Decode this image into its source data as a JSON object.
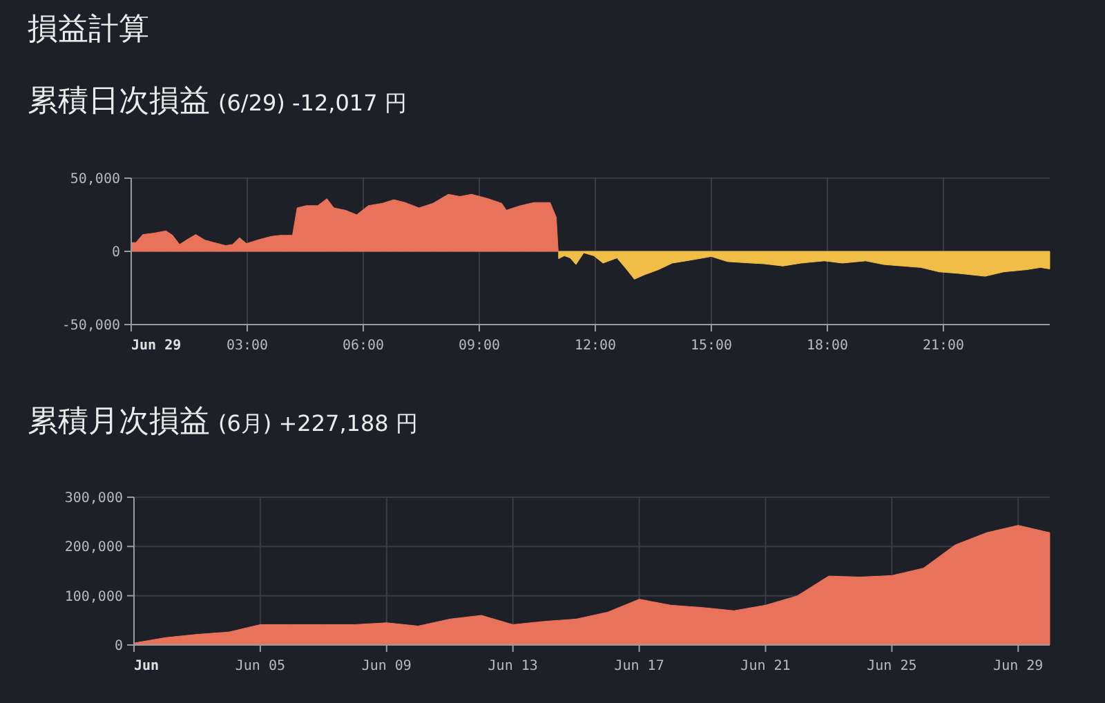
{
  "chart_data": [
    {
      "type": "area",
      "title": "累積日次損益",
      "subtitle": "(6/29) -12,017 円",
      "annotations": [
        "損益計算"
      ],
      "grid": true,
      "xlim": [
        0,
        23.75
      ],
      "xticks": [
        {
          "value": 0,
          "label": "Jun 29"
        },
        {
          "value": 3,
          "label": "03:00"
        },
        {
          "value": 6,
          "label": "06:00"
        },
        {
          "value": 9,
          "label": "09:00"
        },
        {
          "value": 12,
          "label": "12:00"
        },
        {
          "value": 15,
          "label": "15:00"
        },
        {
          "value": 18,
          "label": "18:00"
        },
        {
          "value": 21,
          "label": "21:00"
        }
      ],
      "ylim": [
        -50000,
        50000
      ],
      "yticks": [
        {
          "value": -50000,
          "label": "-50,000"
        },
        0,
        {
          "value": 50000,
          "label": "50,000"
        }
      ],
      "series": [
        {
          "color": "#e8735a",
          "x": [
            0,
            0.12,
            0.3,
            0.6,
            0.9,
            1.07,
            1.25,
            1.43,
            1.67,
            1.9,
            2.14,
            2.44,
            2.62,
            2.8,
            2.98,
            3.27,
            3.63,
            3.87,
            4.17,
            4.29,
            4.52,
            4.82,
            5.06,
            5.24,
            5.54,
            5.83,
            6.13,
            6.49,
            6.79,
            7.08,
            7.44,
            7.8,
            8.2,
            8.5,
            8.8,
            9.23,
            9.58,
            9.7,
            10.06,
            10.42,
            10.83,
            10.99,
            11.04
          ],
          "values": [
            6000,
            6000,
            11500,
            12500,
            14000,
            11000,
            4700,
            7800,
            11500,
            7800,
            6000,
            4000,
            4700,
            9400,
            5300,
            7800,
            10300,
            11000,
            11000,
            29700,
            31200,
            31200,
            36000,
            29700,
            28100,
            25000,
            31200,
            32800,
            35300,
            33400,
            29700,
            32800,
            39000,
            37500,
            39000,
            36000,
            32800,
            28100,
            31200,
            33400,
            33400,
            23400,
            0
          ]
        },
        {
          "color": "#f0bd47",
          "x": [
            11.05,
            11.2,
            11.35,
            11.5,
            11.7,
            11.96,
            12.2,
            12.56,
            12.8,
            13.01,
            13.27,
            13.63,
            13.99,
            14.46,
            15.0,
            15.42,
            15.9,
            16.37,
            16.85,
            17.32,
            17.92,
            18.39,
            18.99,
            19.46,
            19.94,
            20.42,
            20.89,
            21.37,
            22.08,
            22.56,
            23.15,
            23.51,
            23.75
          ],
          "values": [
            -5000,
            -3000,
            -4500,
            -9000,
            -1000,
            -3000,
            -8000,
            -4500,
            -12000,
            -19000,
            -16000,
            -12500,
            -8000,
            -6000,
            -3500,
            -7000,
            -7800,
            -8500,
            -10000,
            -8000,
            -6500,
            -8000,
            -6500,
            -9000,
            -10000,
            -11000,
            -14000,
            -15000,
            -17000,
            -14000,
            -12500,
            -11000,
            -12000
          ]
        }
      ]
    },
    {
      "type": "area",
      "title": "累積月次損益",
      "subtitle": "(6月) +227,188 円",
      "grid": true,
      "xlim": [
        "--06-01",
        "--06-30"
      ],
      "xticks": [
        {
          "value": "--06-01",
          "label": "Jun"
        },
        {
          "value": "--06-05",
          "label": "Jun 05"
        },
        {
          "value": "--06-09",
          "label": "Jun 09"
        },
        {
          "value": "--06-13",
          "label": "Jun 13"
        },
        {
          "value": "--06-17",
          "label": "Jun 17"
        },
        {
          "value": "--06-21",
          "label": "Jun 21"
        },
        {
          "value": "--06-25",
          "label": "Jun 25"
        },
        {
          "value": "--06-29",
          "label": "Jun 29"
        }
      ],
      "ylim": [
        0,
        300000
      ],
      "yticks": [
        0,
        {
          "value": 100000,
          "label": "100,000"
        },
        {
          "value": 200000,
          "label": "200,000"
        },
        {
          "value": 300000,
          "label": "300,000"
        }
      ],
      "x": [
        "--06-01",
        "--06-02",
        "--06-03",
        "--06-04",
        "--06-05",
        "--06-06",
        "--06-07",
        "--06-08",
        "--06-09",
        "--06-10",
        "--06-11",
        "--06-12",
        "--06-13",
        "--06-14",
        "--06-15",
        "--06-16",
        "--06-17",
        "--06-18",
        "--06-19",
        "--06-20",
        "--06-21",
        "--06-22",
        "--06-23",
        "--06-24",
        "--06-25",
        "--06-26",
        "--06-27",
        "--06-28",
        "--06-29",
        "--06-30"
      ],
      "series": [
        {
          "color": "#e8735a",
          "values": [
            4000,
            15000,
            21600,
            26300,
            41400,
            41400,
            41400,
            41400,
            45100,
            38500,
            52600,
            60200,
            41400,
            48000,
            52600,
            66700,
            93000,
            80800,
            76100,
            69600,
            80800,
            99600,
            140000,
            138000,
            141000,
            156000,
            203000,
            228000,
            243000,
            228000
          ]
        }
      ]
    }
  ]
}
